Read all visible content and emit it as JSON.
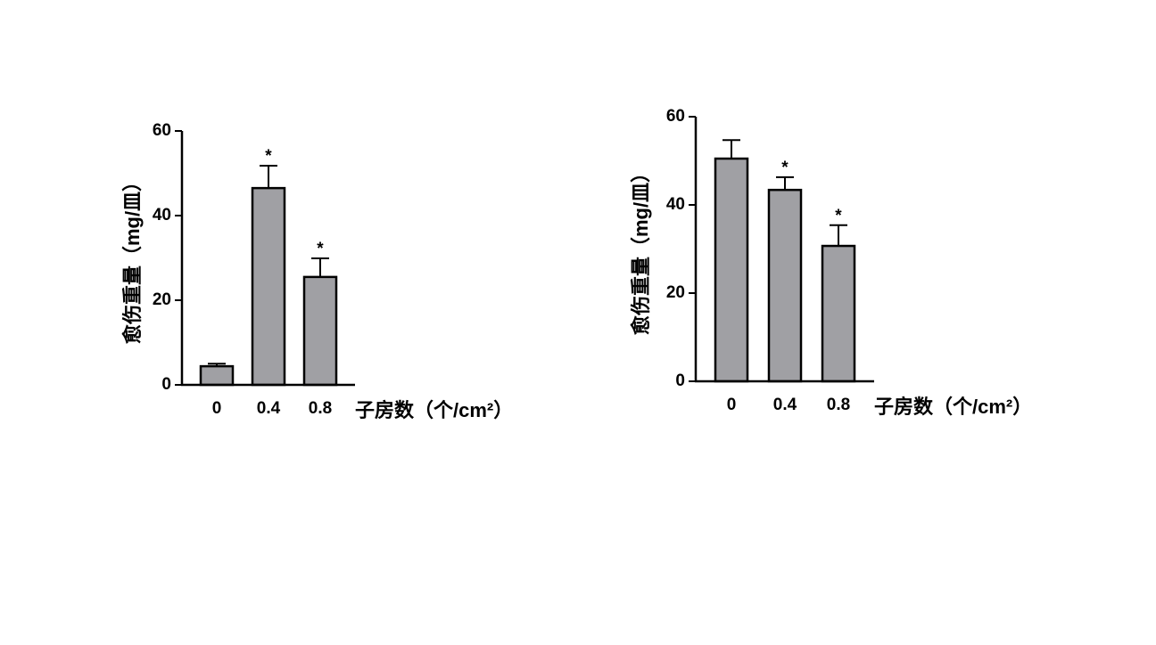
{
  "chart_data": [
    {
      "type": "bar",
      "y_label": "愈伤重量（mg/皿）",
      "x_label": "子房数（个/cm²）",
      "categories": [
        "0",
        "0.4",
        "0.8"
      ],
      "values": [
        4.4,
        46.5,
        25.5
      ],
      "errors": [
        0.6,
        5.3,
        4.4
      ],
      "annotations": [
        null,
        "*",
        "*"
      ],
      "color": "#a0a0a4",
      "ylim": [
        0,
        60
      ],
      "yticks": [
        0,
        20,
        40,
        60
      ]
    },
    {
      "type": "bar",
      "y_label": "愈伤重量（mg/皿）",
      "x_label": "子房数（个/cm²）",
      "categories": [
        "0",
        "0.4",
        "0.8"
      ],
      "values": [
        50.5,
        43.4,
        30.7
      ],
      "errors": [
        4.2,
        2.9,
        4.7
      ],
      "annotations": [
        null,
        "*",
        "*"
      ],
      "color": "#a0a0a4",
      "ylim": [
        0,
        60
      ],
      "yticks": [
        0,
        20,
        40,
        60
      ]
    }
  ]
}
